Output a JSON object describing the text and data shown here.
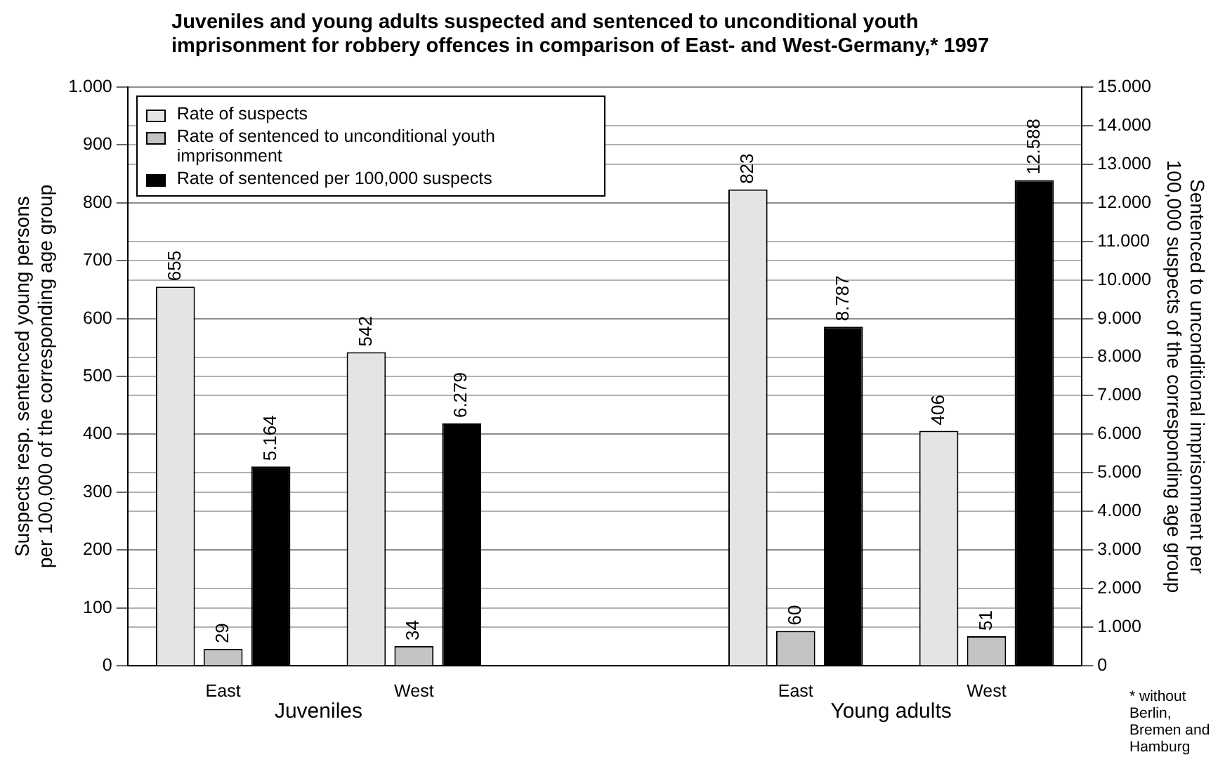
{
  "chart_data": {
    "type": "bar",
    "title": "Juveniles and young adults suspected and sentenced to unconditional youth imprisonment for robbery offences in comparison of East- and West-Germany,* 1997",
    "categories": [
      "East",
      "West",
      null,
      "East",
      "West"
    ],
    "ylabel": "Suspects resp. sentenced young persons per 100,000 of the corresponding age group",
    "y2label": "Sentenced to unconditional imprisonment per 100,000 suspects of the corresponding age group",
    "series": [
      {
        "name": "Rate of suspects",
        "color": "#e4e4e4",
        "values": [
          655,
          542,
          null,
          823,
          406
        ],
        "value_labels": [
          "655",
          "542",
          null,
          "823",
          "406"
        ]
      },
      {
        "name": "Rate of sentenced to unconditional youth imprisonment",
        "color": "#c4c4c4",
        "values": [
          29,
          34,
          null,
          60,
          51
        ],
        "value_labels": [
          "29",
          "34",
          null,
          "60",
          "51"
        ]
      },
      {
        "name": "Rate of sentenced per 100,000 suspects",
        "color": "#000000",
        "axis": "y2",
        "values": [
          5164,
          6279,
          null,
          8787,
          12588
        ],
        "value_labels": [
          "5.164",
          "6.279",
          null,
          "8.787",
          "12.588"
        ]
      }
    ],
    "ylim": [
      0,
      1000
    ],
    "yticks": [
      0,
      100,
      200,
      300,
      400,
      500,
      600,
      700,
      800,
      900,
      {
        "value": 1000,
        "label": "1.000"
      }
    ],
    "y2lim": [
      0,
      15000
    ],
    "y2ticks": [
      0,
      {
        "value": 1000,
        "label": "1.000"
      },
      {
        "value": 2000,
        "label": "2.000"
      },
      {
        "value": 3000,
        "label": "3.000"
      },
      {
        "value": 4000,
        "label": "4.000"
      },
      {
        "value": 5000,
        "label": "5.000"
      },
      {
        "value": 6000,
        "label": "6.000"
      },
      {
        "value": 7000,
        "label": "7.000"
      },
      {
        "value": 8000,
        "label": "8.000"
      },
      {
        "value": 9000,
        "label": "9.000"
      },
      {
        "value": 10000,
        "label": "10.000"
      },
      {
        "value": 11000,
        "label": "11.000"
      },
      {
        "value": 12000,
        "label": "12.000"
      },
      {
        "value": 13000,
        "label": "13.000"
      },
      {
        "value": 14000,
        "label": "14.000"
      },
      {
        "value": 15000,
        "label": "15.000"
      }
    ],
    "annotations": [
      "Juveniles",
      "Young adults",
      "* without Berlin, Bremen and Hamburg"
    ],
    "grid": true,
    "legend": "top left"
  }
}
